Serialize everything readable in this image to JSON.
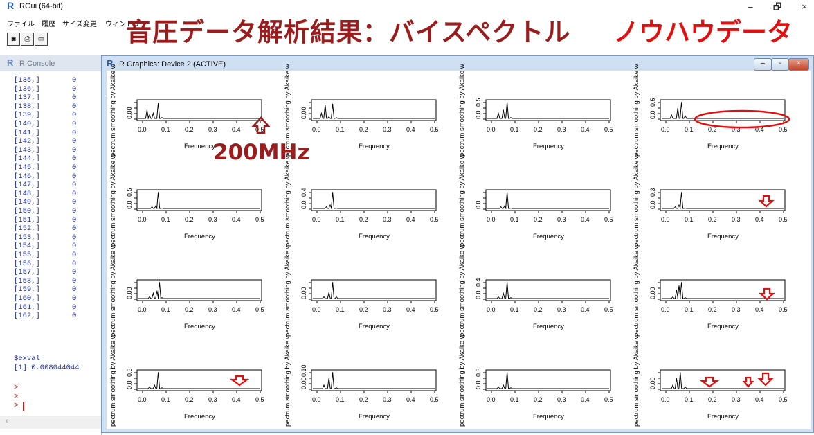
{
  "window": {
    "app_title": "RGui (64-bit)",
    "controls": [
      "–",
      "🗗",
      "×"
    ]
  },
  "menu": [
    "ファイル",
    "履歴",
    "サイズ変更",
    "ウィンドウ"
  ],
  "toolbar": {
    "buttons": [
      "camera-icon",
      "print-icon",
      "window-icon"
    ]
  },
  "annotations": {
    "title": "音圧データ解析結果：バイスペクトル",
    "knowhow": "ノウハウデータ",
    "freq_label": "200MHz"
  },
  "console": {
    "title": "R Console",
    "rows": [
      "[135,]",
      "[136,]",
      "[137,]",
      "[138,]",
      "[139,]",
      "[140,]",
      "[141,]",
      "[142,]",
      "[143,]",
      "[144,]",
      "[145,]",
      "[146,]",
      "[147,]",
      "[148,]",
      "[149,]",
      "[150,]",
      "[151,]",
      "[152,]",
      "[153,]",
      "[154,]",
      "[155,]",
      "[156,]",
      "[157,]",
      "[158,]",
      "[159,]",
      "[160,]",
      "[161,]",
      "[162,]"
    ],
    "row_value": "0",
    "exval_label": "$exval",
    "exval_value": "[1] 0.008044044",
    "prompts": [
      ">",
      ">",
      ">"
    ]
  },
  "graphics": {
    "title": "R Graphics: Device 2 (ACTIVE)",
    "ylabel_text": "pectrum smoothing by  Akaike  w",
    "xlabel": "Frequency",
    "xticks": [
      "0.0",
      "0.1",
      "0.2",
      "0.3",
      "0.4",
      "0.5"
    ],
    "panels": [
      {
        "yticks": [
          "0.00"
        ]
      },
      {
        "yticks": [
          "0.00"
        ]
      },
      {
        "yticks": [
          "0.0",
          "0.5"
        ]
      },
      {
        "yticks": [
          "0.0",
          "0.5"
        ]
      },
      {
        "yticks": [
          "0.0",
          "0.5"
        ]
      },
      {
        "yticks": [
          "0.0",
          "0.4"
        ]
      },
      {
        "yticks": [
          "0.0"
        ]
      },
      {
        "yticks": [
          "0.0",
          "0.3"
        ]
      },
      {
        "yticks": [
          "0.00"
        ]
      },
      {
        "yticks": [
          "0.00"
        ]
      },
      {
        "yticks": [
          "0.0",
          "0.4"
        ]
      },
      {
        "yticks": [
          "0.00"
        ]
      },
      {
        "yticks": [
          "0.0",
          "0.3"
        ]
      },
      {
        "yticks": [
          "0.00",
          "0.10"
        ]
      },
      {
        "yticks": [
          "0.0",
          "0.3"
        ]
      },
      {
        "yticks": [
          "0.00"
        ]
      }
    ]
  },
  "colors": {
    "annotation": "#9b1c1c",
    "highlight": "#e01010",
    "console_text": "#1c2ea8"
  }
}
